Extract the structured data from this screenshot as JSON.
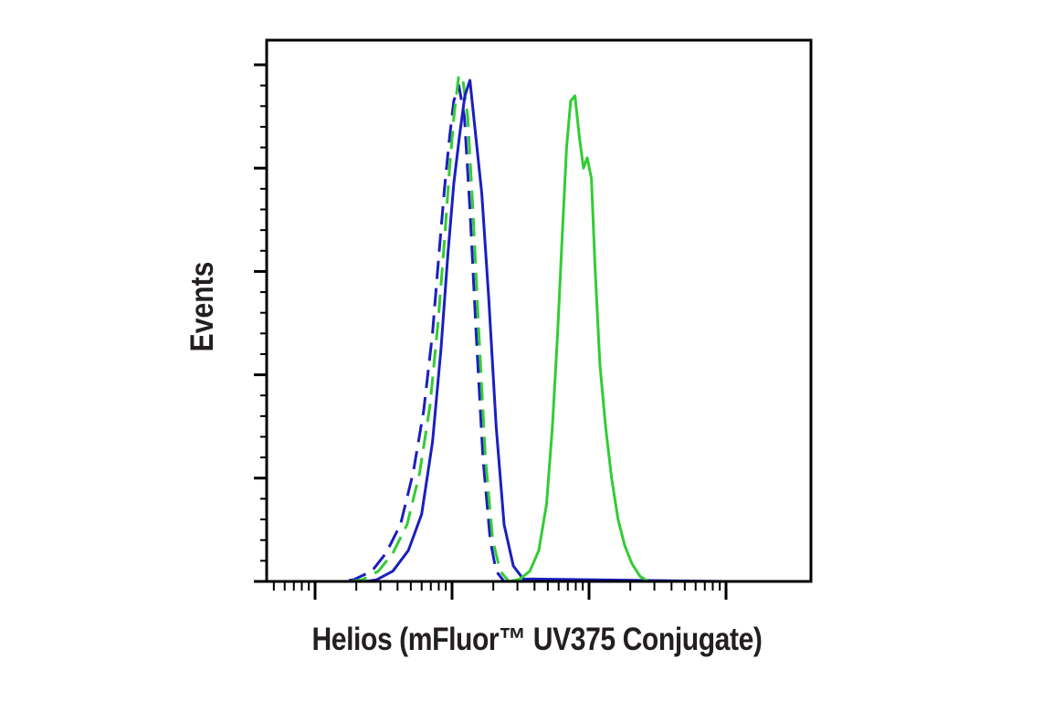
{
  "chart_data": {
    "type": "line",
    "title": "",
    "xlabel": "Helios (mFluor™ UV375 Conjugate)",
    "ylabel": "Events",
    "xscale": "log",
    "xlim": [
      10,
      100000
    ],
    "ylim": [
      0,
      100
    ],
    "grid": false,
    "legend": "none",
    "series": [
      {
        "color": "#1a1fbf",
        "style": "dashed",
        "x": [
          10,
          150,
          190,
          260,
          330,
          420,
          520,
          620,
          720,
          800,
          880,
          960,
          1030,
          1120,
          1230,
          1350,
          1500,
          1680,
          1900,
          2100,
          2400,
          100000
        ],
        "y": [
          0,
          0,
          0.3,
          2,
          5.5,
          11,
          21,
          33,
          48,
          63,
          76,
          86,
          93,
          96,
          90,
          72,
          48,
          24,
          8,
          2,
          0,
          0
        ]
      },
      {
        "color": "#33cc33",
        "style": "dashed",
        "x": [
          10,
          180,
          220,
          290,
          370,
          470,
          580,
          690,
          790,
          880,
          960,
          1040,
          1120,
          1200,
          1300,
          1420,
          1570,
          1750,
          1980,
          2250,
          2600,
          100000
        ],
        "y": [
          0,
          0,
          0.3,
          2,
          5.5,
          11,
          21,
          34,
          50,
          66,
          80,
          91,
          98,
          97,
          90,
          72,
          48,
          24,
          8,
          2,
          0,
          0
        ]
      },
      {
        "color": "#1a1fbf",
        "style": "solid",
        "x": [
          10,
          230,
          280,
          370,
          480,
          600,
          720,
          830,
          930,
          1030,
          1130,
          1240,
          1350,
          1480,
          1650,
          1850,
          2100,
          2400,
          2800,
          3300,
          100000
        ],
        "y": [
          0,
          0,
          0.3,
          2,
          6,
          13,
          27,
          45,
          63,
          77,
          86,
          94,
          97,
          87,
          75,
          55,
          30,
          11,
          3,
          0.5,
          0
        ]
      },
      {
        "color": "#33cc33",
        "style": "solid",
        "x": [
          10,
          2600,
          3100,
          3700,
          4300,
          4900,
          5400,
          5900,
          6350,
          6850,
          7350,
          7900,
          8500,
          9100,
          9700,
          10400,
          11100,
          12000,
          13200,
          14600,
          16300,
          18200,
          20500,
          23500,
          27000,
          100000
        ],
        "y": [
          0,
          0,
          0.4,
          2,
          6,
          15,
          30,
          48,
          66,
          84,
          93,
          94,
          86,
          80,
          82,
          78,
          60,
          42,
          30,
          20,
          12,
          7,
          3.5,
          1,
          0,
          0
        ]
      }
    ]
  }
}
